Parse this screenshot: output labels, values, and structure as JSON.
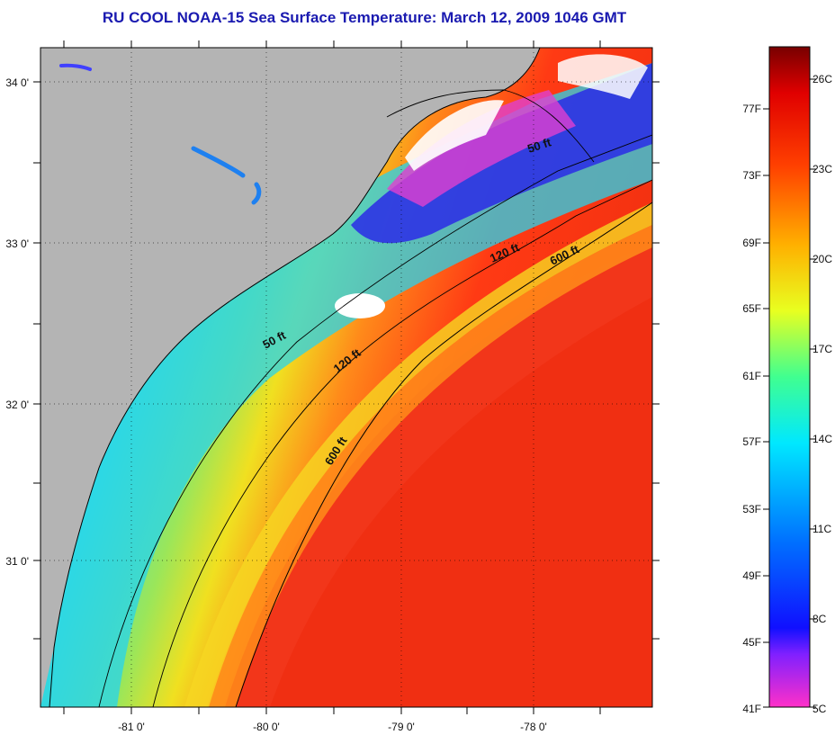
{
  "title": "RU COOL  NOAA-15  Sea Surface Temperature:  March 12, 2009 1046 GMT",
  "lat_labels": [
    "34 0'",
    "33 0'",
    "32 0'",
    "31 0'"
  ],
  "lon_labels": [
    "-81 0'",
    "-80 0'",
    "-79 0'",
    "-78 0'"
  ],
  "contours": {
    "shelf_50": "50 ft",
    "shelf_120": "120 ft",
    "shelf_600": "600 ft",
    "north_50": "50 ft",
    "north_120": "120 ft",
    "north_600": "600 ft"
  },
  "colorbar": {
    "fahrenheit": [
      "77F",
      "73F",
      "69F",
      "65F",
      "61F",
      "57F",
      "53F",
      "49F",
      "45F",
      "41F"
    ],
    "celsius": [
      "26C",
      "23C",
      "20C",
      "17C",
      "14C",
      "11C",
      "8C",
      "5C"
    ]
  },
  "colors": {
    "land": "#b4b4b4",
    "title": "#1a1ab0"
  }
}
